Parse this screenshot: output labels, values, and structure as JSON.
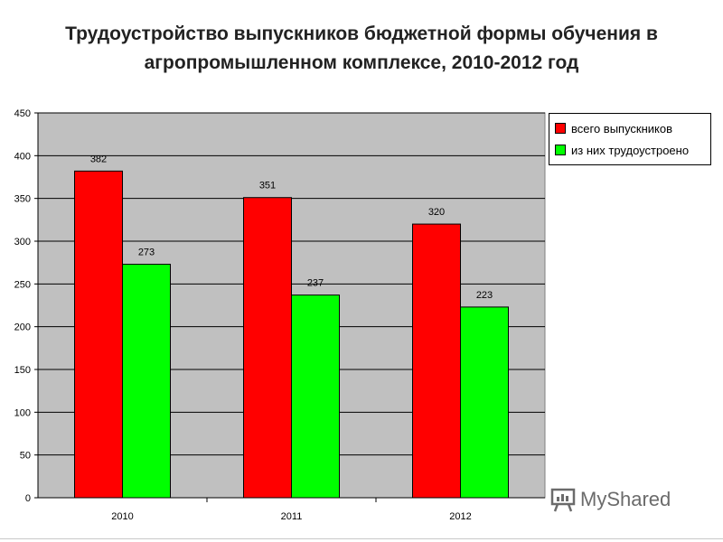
{
  "title": {
    "line1": "Трудоустройство выпускников бюджетной формы обучения в",
    "line2": "агропромышленном комплексе, 2010-2012 год"
  },
  "watermark": {
    "text": "MyShared"
  },
  "colors": {
    "series1": "#ff0000",
    "series2": "#00ff00",
    "plot_background": "#c0c0c0",
    "gridline": "#000000"
  },
  "chart_data": {
    "type": "bar",
    "title": "Трудоустройство выпускников бюджетной формы обучения в агропромышленном комплексе, 2010-2012 год",
    "categories": [
      "2010",
      "2011",
      "2012"
    ],
    "series": [
      {
        "name": "всего выпускников",
        "values": [
          382,
          351,
          320
        ],
        "color": "#ff0000"
      },
      {
        "name": "из них трудоустроено",
        "values": [
          273,
          237,
          223
        ],
        "color": "#00ff00"
      }
    ],
    "ylim": [
      0,
      450
    ],
    "yticks": [
      0,
      50,
      100,
      150,
      200,
      250,
      300,
      350,
      400,
      450
    ],
    "grid": true,
    "legend_position": "right",
    "data_labels": true,
    "xlabel": "",
    "ylabel": ""
  }
}
